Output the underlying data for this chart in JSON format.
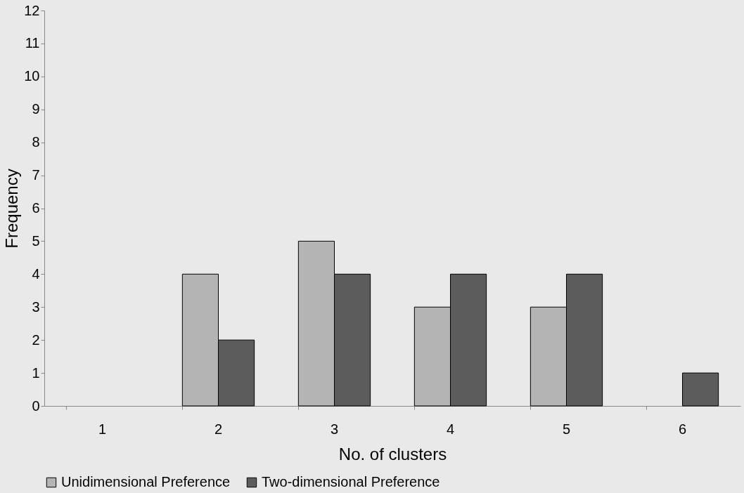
{
  "chart_data": {
    "type": "bar",
    "xlabel": "No. of clusters",
    "ylabel": "Frequency",
    "categories": [
      "1",
      "2",
      "3",
      "4",
      "5",
      "6"
    ],
    "series": [
      {
        "name": "Unidimensional Preference",
        "color": "#b4b4b4",
        "values": [
          0,
          4,
          5,
          3,
          3,
          0
        ]
      },
      {
        "name": "Two-dimensional Preference",
        "color": "#5c5c5c",
        "values": [
          0,
          2,
          4,
          4,
          4,
          1
        ]
      }
    ],
    "ylim": [
      0,
      12
    ],
    "yticks": [
      0,
      1,
      2,
      3,
      4,
      5,
      6,
      7,
      8,
      9,
      10,
      11,
      12
    ],
    "grid": false,
    "legend": "bottom"
  }
}
